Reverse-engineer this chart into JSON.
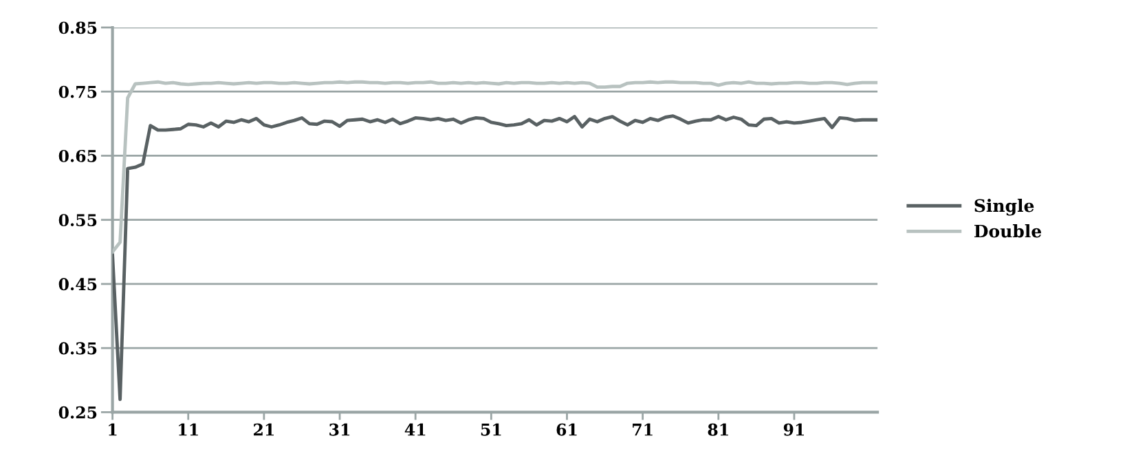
{
  "chart_data": {
    "type": "line",
    "x": [
      1,
      2,
      3,
      4,
      5,
      6,
      7,
      8,
      9,
      10,
      11,
      12,
      13,
      14,
      15,
      16,
      17,
      18,
      19,
      20,
      21,
      22,
      23,
      24,
      25,
      26,
      27,
      28,
      29,
      30,
      31,
      32,
      33,
      34,
      35,
      36,
      37,
      38,
      39,
      40,
      41,
      42,
      43,
      44,
      45,
      46,
      47,
      48,
      49,
      50,
      51,
      52,
      53,
      54,
      55,
      56,
      57,
      58,
      59,
      60,
      61,
      62,
      63,
      64,
      65,
      66,
      67,
      68,
      69,
      70,
      71,
      72,
      73,
      74,
      75,
      76,
      77,
      78,
      79,
      80,
      81,
      82,
      83,
      84,
      85,
      86,
      87,
      88,
      89,
      90,
      91,
      92,
      93,
      94,
      95,
      96,
      97,
      98,
      99,
      100,
      101,
      102
    ],
    "series": [
      {
        "name": "Single",
        "color": "#596163",
        "values": [
          0.495,
          0.27,
          0.63,
          0.632,
          0.637,
          0.697,
          0.69,
          0.69,
          0.691,
          0.692,
          0.699,
          0.698,
          0.695,
          0.701,
          0.695,
          0.704,
          0.702,
          0.706,
          0.703,
          0.708,
          0.698,
          0.695,
          0.698,
          0.702,
          0.705,
          0.709,
          0.7,
          0.699,
          0.704,
          0.703,
          0.696,
          0.705,
          0.706,
          0.707,
          0.703,
          0.706,
          0.702,
          0.707,
          0.7,
          0.704,
          0.709,
          0.708,
          0.706,
          0.708,
          0.705,
          0.707,
          0.701,
          0.706,
          0.709,
          0.708,
          0.702,
          0.7,
          0.697,
          0.698,
          0.7,
          0.706,
          0.698,
          0.705,
          0.704,
          0.708,
          0.703,
          0.711,
          0.695,
          0.707,
          0.703,
          0.708,
          0.711,
          0.704,
          0.698,
          0.705,
          0.702,
          0.708,
          0.705,
          0.71,
          0.712,
          0.707,
          0.701,
          0.704,
          0.706,
          0.706,
          0.711,
          0.706,
          0.71,
          0.707,
          0.698,
          0.697,
          0.707,
          0.708,
          0.701,
          0.703,
          0.701,
          0.702,
          0.704,
          0.706,
          0.708,
          0.694,
          0.709,
          0.708,
          0.705,
          0.706,
          0.706,
          0.706
        ]
      },
      {
        "name": "Double",
        "color": "#b8c2c0",
        "values": [
          0.5,
          0.515,
          0.74,
          0.762,
          0.763,
          0.764,
          0.765,
          0.763,
          0.764,
          0.762,
          0.761,
          0.762,
          0.763,
          0.763,
          0.764,
          0.763,
          0.762,
          0.763,
          0.764,
          0.763,
          0.764,
          0.764,
          0.763,
          0.763,
          0.764,
          0.763,
          0.762,
          0.763,
          0.764,
          0.764,
          0.765,
          0.764,
          0.765,
          0.765,
          0.764,
          0.764,
          0.763,
          0.764,
          0.764,
          0.763,
          0.764,
          0.764,
          0.765,
          0.763,
          0.763,
          0.764,
          0.763,
          0.764,
          0.763,
          0.764,
          0.763,
          0.762,
          0.764,
          0.763,
          0.764,
          0.764,
          0.763,
          0.763,
          0.764,
          0.763,
          0.764,
          0.763,
          0.764,
          0.763,
          0.757,
          0.757,
          0.758,
          0.758,
          0.763,
          0.764,
          0.764,
          0.765,
          0.764,
          0.765,
          0.765,
          0.764,
          0.764,
          0.764,
          0.763,
          0.763,
          0.76,
          0.763,
          0.764,
          0.763,
          0.765,
          0.763,
          0.763,
          0.762,
          0.763,
          0.763,
          0.764,
          0.764,
          0.763,
          0.763,
          0.764,
          0.764,
          0.763,
          0.761,
          0.763,
          0.764,
          0.764,
          0.764
        ]
      }
    ],
    "xlim": [
      1,
      102
    ],
    "xticks": [
      1,
      11,
      21,
      31,
      41,
      51,
      61,
      71,
      81,
      91
    ],
    "ylim": [
      0.25,
      0.85
    ],
    "yticks": [
      {
        "value": 0.25,
        "label": "0.25"
      },
      {
        "value": 0.35,
        "label": "0.35"
      },
      {
        "value": 0.45,
        "label": "0.45"
      },
      {
        "value": 0.55,
        "label": "0.55"
      },
      {
        "value": 0.65,
        "label": "0.65"
      },
      {
        "value": 0.75,
        "label": "0.75"
      },
      {
        "value": 0.85,
        "label": "0.85"
      }
    ],
    "grid": "y",
    "legend": "right"
  }
}
